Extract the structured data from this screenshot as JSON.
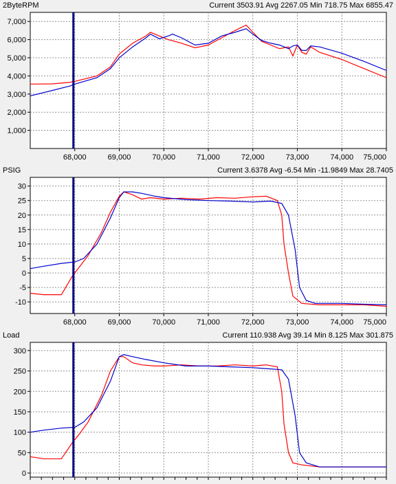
{
  "colors": {
    "series_red": "#ff0000",
    "series_blue": "#0000cc",
    "cursor": "#000080",
    "grid": "#909090"
  },
  "cursor_x": 68000,
  "chart_data": [
    {
      "type": "line",
      "title": "2ByteRPM",
      "stats": "Current 3503.91 Avg 2267.05 Min 718.75 Max 6855.47",
      "xlim": [
        67000,
        75000
      ],
      "ylim": [
        0,
        7500
      ],
      "yticks": [
        1000,
        2000,
        3000,
        4000,
        5000,
        6000,
        7000
      ],
      "yticklabels": [
        "1,000",
        "2,000",
        "3,000",
        "4,000",
        "5,000",
        "6,000",
        "7,000"
      ],
      "xticks": [
        68000,
        69000,
        70000,
        71000,
        72000,
        73000,
        74000,
        75000
      ],
      "xticklabels": [
        "68,000",
        "69,000",
        "70,000",
        "71,000",
        "72,000",
        "73,000",
        "74,000",
        "75,000"
      ],
      "grid": true,
      "series": [
        {
          "color": "red",
          "x": [
            67000,
            67500,
            67900,
            68000,
            68500,
            68800,
            69000,
            69300,
            69600,
            69700,
            69900,
            70100,
            70400,
            70700,
            71000,
            71300,
            71600,
            71850,
            72000,
            72200,
            72400,
            72600,
            72700,
            72800,
            72900,
            73000,
            73100,
            73200,
            73300,
            73500,
            74000,
            74500,
            75000
          ],
          "y": [
            3550,
            3560,
            3650,
            3700,
            4000,
            4500,
            5200,
            5800,
            6200,
            6400,
            6200,
            6000,
            5800,
            5550,
            5700,
            6100,
            6500,
            6800,
            6400,
            5900,
            5700,
            5500,
            5550,
            5600,
            5100,
            5700,
            5300,
            5200,
            5600,
            5300,
            4900,
            4400,
            3900
          ]
        },
        {
          "color": "blue",
          "x": [
            67000,
            67500,
            67900,
            68000,
            68500,
            68800,
            69000,
            69300,
            69600,
            69700,
            69900,
            70100,
            70200,
            70400,
            70700,
            71000,
            71300,
            71600,
            71850,
            72000,
            72200,
            72400,
            72600,
            72800,
            72900,
            73000,
            73100,
            73200,
            73300,
            73500,
            74000,
            74500,
            75000
          ],
          "y": [
            2900,
            3200,
            3450,
            3550,
            3900,
            4400,
            5000,
            5600,
            6100,
            6300,
            6050,
            6200,
            6300,
            6100,
            5700,
            5800,
            6200,
            6400,
            6600,
            6300,
            5950,
            5800,
            5700,
            5500,
            5650,
            5700,
            5400,
            5400,
            5650,
            5600,
            5250,
            4800,
            4300
          ]
        }
      ]
    },
    {
      "type": "line",
      "title": "PSIG",
      "stats": "Current 3.6378 Avg -6.54 Min -11.9849 Max 28.7405",
      "xlim": [
        67000,
        75000
      ],
      "ylim": [
        -14,
        33
      ],
      "yticks": [
        -10,
        -5,
        0,
        5,
        10,
        15,
        20,
        25,
        30
      ],
      "yticklabels": [
        "-10",
        "-5",
        "0",
        "5",
        "10",
        "15",
        "20",
        "25",
        "30"
      ],
      "xticks": [
        68000,
        69000,
        70000,
        71000,
        72000,
        73000,
        74000,
        75000
      ],
      "xticklabels": [
        "68,000",
        "69,000",
        "70,000",
        "71,000",
        "72,000",
        "73,000",
        "74,000",
        "75,000"
      ],
      "grid": true,
      "series": [
        {
          "color": "red",
          "x": [
            67000,
            67300,
            67700,
            67950,
            68100,
            68300,
            68600,
            68800,
            69000,
            69100,
            69300,
            69500,
            69700,
            70000,
            70400,
            70800,
            71200,
            71600,
            72000,
            72300,
            72550,
            72650,
            72700,
            72800,
            72900,
            73100,
            73500,
            74000,
            74500,
            75000
          ],
          "y": [
            -7,
            -7.5,
            -7.5,
            -1,
            2,
            6,
            14,
            21,
            26.5,
            28,
            27,
            25.5,
            26,
            25.5,
            25.8,
            25.5,
            26,
            25.8,
            26.3,
            26.5,
            25,
            20,
            10,
            0,
            -8,
            -10.5,
            -11,
            -11,
            -11,
            -11.5
          ]
        },
        {
          "color": "blue",
          "x": [
            67000,
            67300,
            67700,
            68000,
            68200,
            68500,
            68800,
            69000,
            69100,
            69300,
            69500,
            69800,
            70000,
            70500,
            71000,
            71500,
            72000,
            72400,
            72650,
            72800,
            72950,
            73050,
            73200,
            73400,
            74000,
            74500,
            75000
          ],
          "y": [
            1.5,
            2.3,
            3.3,
            3.8,
            5,
            10,
            19,
            26,
            28,
            28,
            27.5,
            26.5,
            26,
            25.3,
            25,
            24.8,
            24.5,
            24.8,
            24,
            20,
            8,
            -5,
            -9.5,
            -10.5,
            -10.5,
            -10.8,
            -11
          ]
        }
      ]
    },
    {
      "type": "line",
      "title": "Load",
      "stats": "Current 110.938 Avg 39.14 Min 8.125 Max 301.875",
      "xlim": [
        67000,
        75000
      ],
      "ylim": [
        -10,
        320
      ],
      "yticks": [
        0,
        50,
        100,
        150,
        200,
        250,
        300
      ],
      "yticklabels": [
        "0",
        "50",
        "100",
        "150",
        "200",
        "250",
        "300"
      ],
      "xticks": [],
      "xticklabels": [],
      "grid": true,
      "series": [
        {
          "color": "red",
          "x": [
            67000,
            67300,
            67700,
            67950,
            68100,
            68300,
            68600,
            68800,
            69000,
            69100,
            69300,
            69500,
            69800,
            70000,
            70400,
            70800,
            71200,
            71600,
            72000,
            72300,
            72550,
            72650,
            72700,
            72800,
            72900,
            73100,
            73500,
            74000,
            74500,
            75000
          ],
          "y": [
            40,
            35,
            35,
            75,
            95,
            125,
            190,
            250,
            285,
            285,
            270,
            265,
            262,
            262,
            265,
            262,
            262,
            265,
            262,
            265,
            260,
            200,
            120,
            50,
            25,
            20,
            15,
            15,
            15,
            15
          ]
        },
        {
          "color": "blue",
          "x": [
            67000,
            67300,
            67700,
            68000,
            68200,
            68500,
            68800,
            69000,
            69100,
            69300,
            69600,
            70000,
            70500,
            71000,
            71500,
            72000,
            72400,
            72650,
            72800,
            72950,
            73050,
            73200,
            73500,
            74000,
            74500,
            75000
          ],
          "y": [
            100,
            105,
            110,
            112,
            125,
            160,
            225,
            285,
            290,
            285,
            278,
            270,
            262,
            262,
            260,
            258,
            255,
            253,
            230,
            140,
            50,
            25,
            15,
            15,
            15,
            15
          ]
        }
      ]
    }
  ]
}
